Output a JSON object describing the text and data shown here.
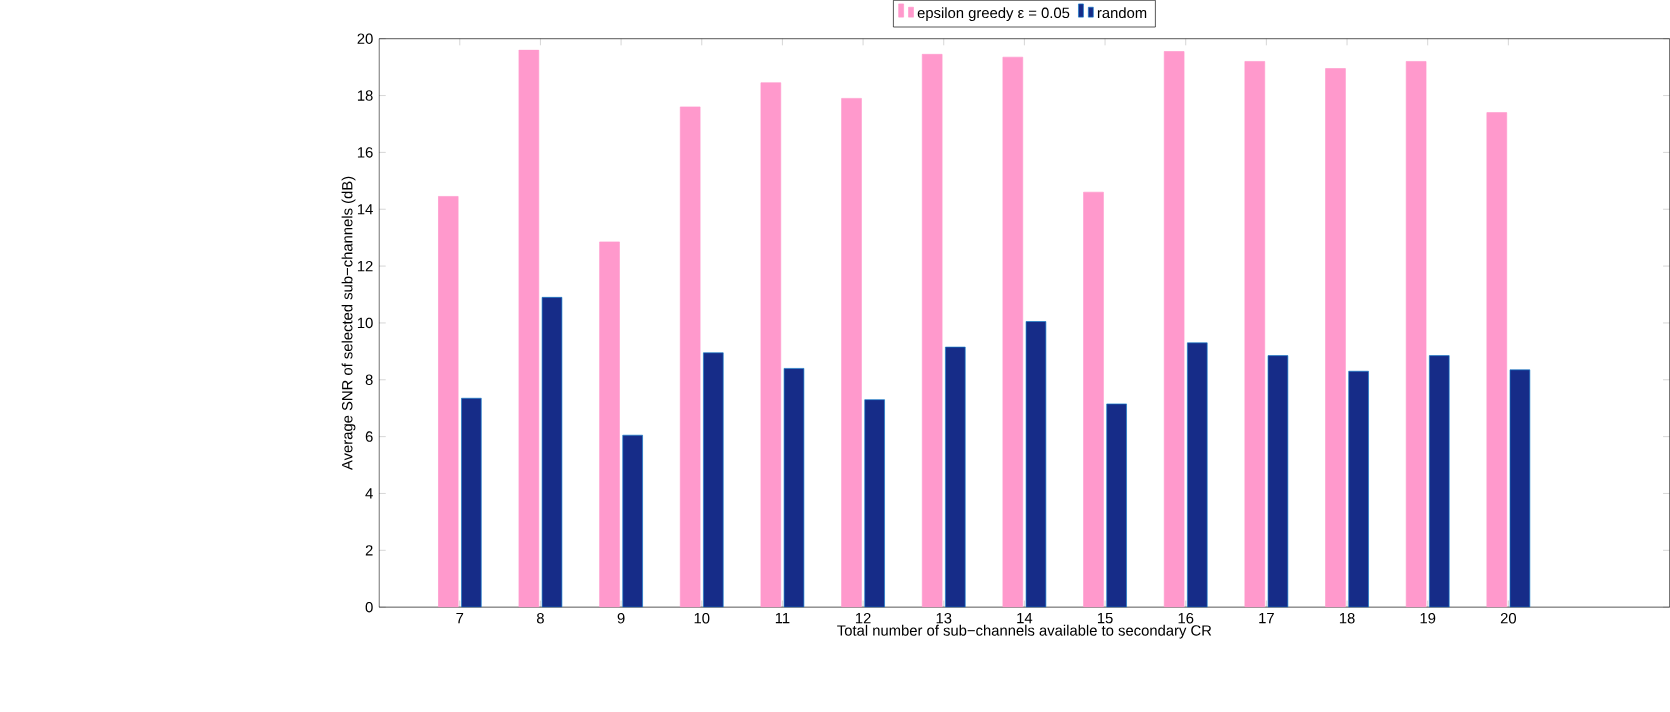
{
  "chart_data": {
    "type": "bar",
    "xlabel": "Total number of sub−channels available to secondary CR",
    "ylabel": "Average SNR of selected sub−channels (dB)",
    "x": [
      7,
      8,
      9,
      10,
      11,
      12,
      13,
      14,
      15,
      16,
      17,
      18,
      19,
      20
    ],
    "series": [
      {
        "name": "epsilon greedy ε = 0.05",
        "color": "#ff99cc",
        "values": [
          14.45,
          19.6,
          12.85,
          17.6,
          18.45,
          17.9,
          19.45,
          19.35,
          14.6,
          19.55,
          19.2,
          18.95,
          19.2,
          17.4
        ]
      },
      {
        "name": "random",
        "color": "#162c88",
        "values": [
          7.35,
          10.9,
          6.05,
          8.95,
          8.4,
          7.3,
          9.15,
          10.05,
          7.15,
          9.3,
          8.85,
          8.3,
          8.85,
          8.35
        ]
      }
    ],
    "xlim": [
      6,
      22
    ],
    "xticks": [
      7,
      8,
      9,
      10,
      11,
      12,
      13,
      14,
      15,
      16,
      17,
      18,
      19,
      20
    ],
    "ylim": [
      0,
      20
    ],
    "yticks": [
      0,
      2,
      4,
      6,
      8,
      10,
      12,
      14,
      16,
      18,
      20
    ],
    "grid": false,
    "legend": "top"
  }
}
